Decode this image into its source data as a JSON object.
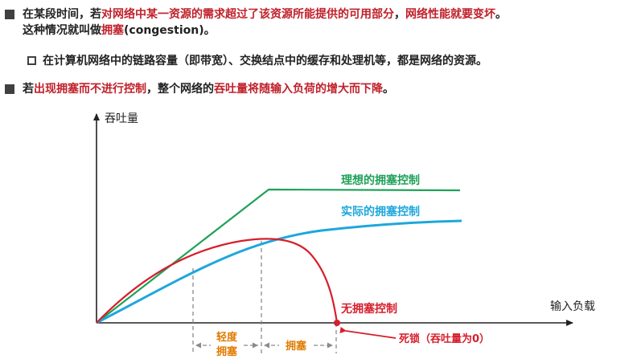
{
  "bullets": {
    "b1": {
      "p1": "在某段时间，若",
      "p2": "对网络中某一资源的需求超过了该资源所能提供的可用部分",
      "p3": "，",
      "p4": "网络性能就要变坏",
      "p5": "。",
      "line2a": "这种情况就叫做",
      "line2b": "拥塞",
      "line2c": "(congestion)。"
    },
    "sub": "在计算机网络中的链路容量（即带宽）、交换结点中的缓存和处理机等，都是网络的资源。",
    "b2": {
      "p1": "若",
      "p2": "出现拥塞而不进行控制",
      "p3": "，整个网络的",
      "p4": "吞吐量将随输入负荷的增大而下降",
      "p5": "。"
    }
  },
  "diagram": {
    "y_axis_label": "吞吐量",
    "x_axis_label": "输入负载",
    "ideal_label": "理想的拥塞控制",
    "actual_label": "实际的拥塞控制",
    "none_label": "无拥塞控制",
    "deadlock_label": "死锁（吞吐量为0）",
    "light_label_1": "轻度",
    "light_label_2": "拥塞",
    "congestion_label": "拥塞",
    "colors": {
      "ideal": "#1fa15a",
      "actual": "#1ea7dc",
      "none": "#d61f2c",
      "light": "#e07b00",
      "axis": "#222222",
      "dashed": "#8a8a8a"
    }
  }
}
